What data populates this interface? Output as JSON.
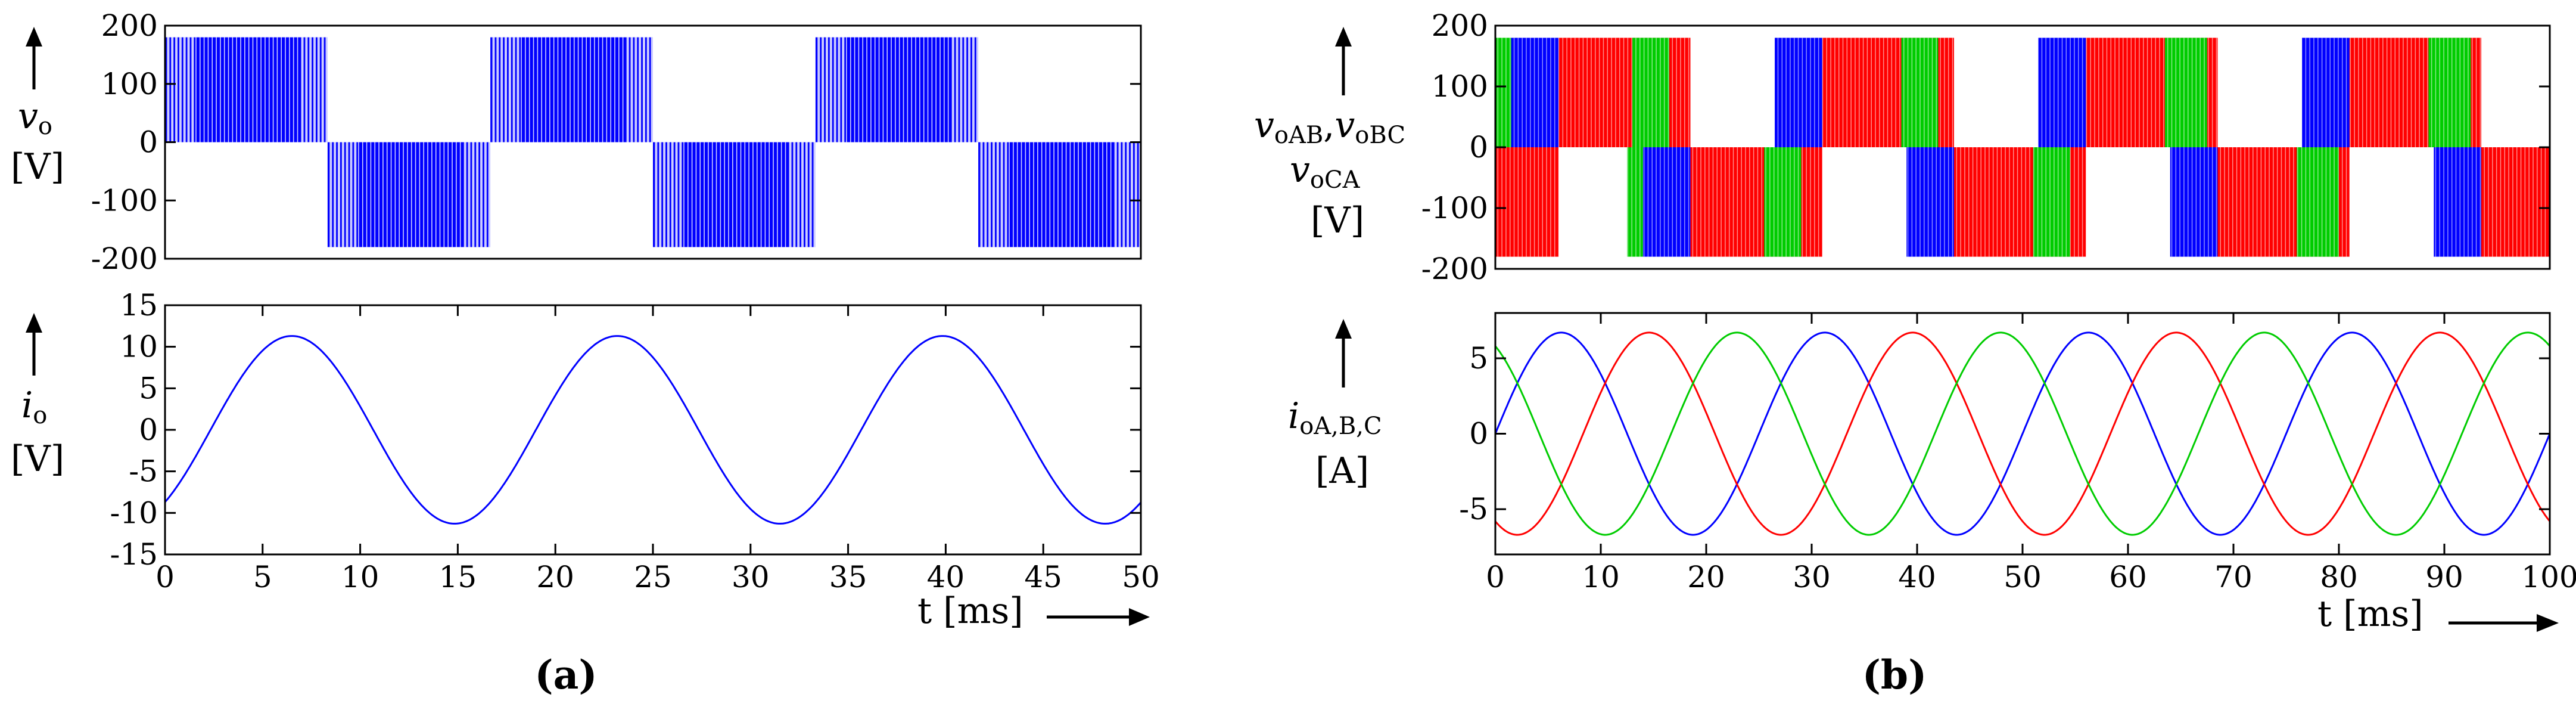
{
  "figure": {
    "panel_a_caption": "(a)",
    "panel_b_caption": "(b)"
  },
  "chart_data": [
    {
      "type": "line",
      "panel": "a-top",
      "ylabel_symbol": "v",
      "ylabel_sub": "o",
      "ylabel_unit": "[V]",
      "xlim": [
        0,
        50
      ],
      "ylim": [
        -200,
        200
      ],
      "yticks": [
        200,
        100,
        0,
        -100,
        -200
      ],
      "ytick_labels": [
        "200",
        "100",
        "0",
        "-100",
        "-200"
      ],
      "colors": [
        "#0000ff"
      ],
      "series": [
        {
          "waveform": "pwm",
          "segments": [
            [
              0,
              8.33,
              180
            ],
            [
              8.33,
              16.67,
              -180
            ],
            [
              16.67,
              25,
              180
            ],
            [
              25,
              33.33,
              -180
            ],
            [
              33.33,
              41.67,
              180
            ],
            [
              41.67,
              50,
              -180
            ]
          ]
        }
      ]
    },
    {
      "type": "line",
      "panel": "a-bottom",
      "ylabel_symbol": "i",
      "ylabel_sub": "o",
      "ylabel_unit": "[V]",
      "xlabel": "t [ms]",
      "xlim": [
        0,
        50
      ],
      "ylim": [
        -15,
        15
      ],
      "yticks": [
        15,
        10,
        5,
        0,
        -5,
        -10,
        -15
      ],
      "ytick_labels": [
        "15",
        "10",
        "5",
        "0",
        "-5",
        "-10",
        "-15"
      ],
      "xticks": [
        0,
        5,
        10,
        15,
        20,
        25,
        30,
        35,
        40,
        45,
        50
      ],
      "xtick_labels": [
        "0",
        "5",
        "10",
        "15",
        "20",
        "25",
        "30",
        "35",
        "40",
        "45",
        "50"
      ],
      "colors": [
        "#0000ff"
      ],
      "series": [
        {
          "waveform": "sine",
          "amplitude": 11.3,
          "period_ms": 16.67,
          "peak_at_ms": 6.5
        }
      ]
    },
    {
      "type": "line",
      "panel": "b-top",
      "ylabel_line1": "v",
      "ylabel_line1_sub1": "oAB",
      "ylabel_line1_sep": ",",
      "ylabel_line1_sub2": "oBC",
      "ylabel_line2": "v",
      "ylabel_line2_sub": "oCA",
      "ylabel_unit": "[V]",
      "xlim": [
        0,
        100
      ],
      "ylim": [
        -200,
        200
      ],
      "yticks": [
        200,
        100,
        0,
        -100,
        -200
      ],
      "ytick_labels": [
        "200",
        "100",
        "0",
        "-100",
        "-200"
      ],
      "colors": [
        "#00cc00",
        "#0000ff",
        "#ff0000"
      ],
      "series": [
        {
          "waveform": "pwm",
          "segments_pos": [
            [
              0,
              1.5
            ],
            [
              13,
              16.5
            ],
            [
              38.5,
              42
            ],
            [
              63.5,
              67.5
            ],
            [
              88.5,
              92.5
            ]
          ]
        },
        {
          "waveform": "pwm",
          "segments_pos": [
            [
              1.5,
              6
            ],
            [
              26.5,
              31
            ],
            [
              51.5,
              56
            ],
            [
              76.5,
              81
            ]
          ]
        },
        {
          "waveform": "pwm",
          "segments_pos": [
            [
              6,
              18.5
            ],
            [
              31,
              43.5
            ],
            [
              56,
              68.5
            ],
            [
              81,
              93.5
            ]
          ]
        }
      ]
    },
    {
      "type": "line",
      "panel": "b-bottom",
      "ylabel_symbol": "i",
      "ylabel_sub": "oA,B,C",
      "ylabel_unit": "[A]",
      "xlabel": "t [ms]",
      "xlim": [
        0,
        100
      ],
      "ylim": [
        -8,
        8
      ],
      "yticks": [
        5,
        0,
        -5
      ],
      "ytick_labels": [
        "5",
        "0",
        "-5"
      ],
      "xticks": [
        0,
        10,
        20,
        30,
        40,
        50,
        60,
        70,
        80,
        90,
        100
      ],
      "xtick_labels": [
        "0",
        "10",
        "20",
        "30",
        "40",
        "50",
        "60",
        "70",
        "80",
        "90",
        "100"
      ],
      "colors": [
        "#0000ff",
        "#ff0000",
        "#00cc00"
      ],
      "series": [
        {
          "waveform": "sine",
          "amplitude": 6.7,
          "period_ms": 25,
          "peak_at_ms": 6.25
        },
        {
          "waveform": "sine",
          "amplitude": 6.7,
          "period_ms": 25,
          "peak_at_ms": 14.58
        },
        {
          "waveform": "sine",
          "amplitude": 6.7,
          "period_ms": 25,
          "peak_at_ms": 22.92
        }
      ]
    }
  ]
}
